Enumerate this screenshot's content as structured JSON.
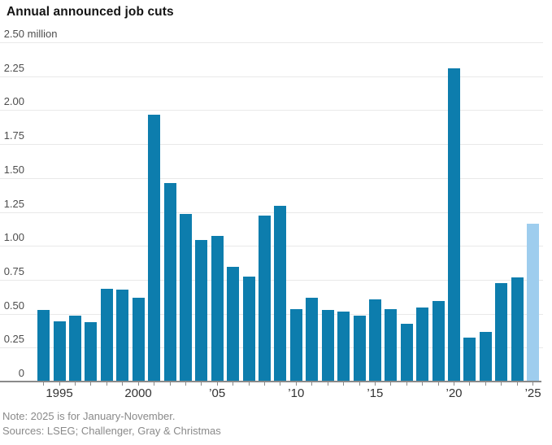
{
  "header": {
    "title": "Annual announced job cuts"
  },
  "footer": {
    "note": "Note: 2025 is for January-November.",
    "sources": "Sources: LSEG; Challenger, Gray & Christmas"
  },
  "chart_data": {
    "type": "bar",
    "title": "Annual announced job cuts",
    "unit": "million announced job cuts",
    "ylim": [
      0,
      2.5
    ],
    "grid": "horizontal",
    "legend": "none",
    "categories": [
      1994,
      1995,
      1996,
      1997,
      1998,
      1999,
      2000,
      2001,
      2002,
      2003,
      2004,
      2005,
      2006,
      2007,
      2008,
      2009,
      2010,
      2011,
      2012,
      2013,
      2014,
      2015,
      2016,
      2017,
      2018,
      2019,
      2020,
      2021,
      2022,
      2023,
      2024,
      2025
    ],
    "values": [
      0.52,
      0.44,
      0.48,
      0.43,
      0.68,
      0.67,
      0.61,
      1.96,
      1.46,
      1.23,
      1.04,
      1.07,
      0.84,
      0.77,
      1.22,
      1.29,
      0.53,
      0.61,
      0.52,
      0.51,
      0.48,
      0.6,
      0.53,
      0.42,
      0.54,
      0.59,
      2.3,
      0.32,
      0.36,
      0.72,
      0.76,
      1.16
    ],
    "highlight_category": 2025,
    "yticks": [
      {
        "value": 2.5,
        "num": "2.50",
        "suffix": " million"
      },
      {
        "value": 2.25,
        "num": "2.25",
        "suffix": ""
      },
      {
        "value": 2.0,
        "num": "2.00",
        "suffix": ""
      },
      {
        "value": 1.75,
        "num": "1.75",
        "suffix": ""
      },
      {
        "value": 1.5,
        "num": "1.50",
        "suffix": ""
      },
      {
        "value": 1.25,
        "num": "1.25",
        "suffix": ""
      },
      {
        "value": 1.0,
        "num": "1.00",
        "suffix": ""
      },
      {
        "value": 0.75,
        "num": "0.75",
        "suffix": ""
      },
      {
        "value": 0.5,
        "num": "0.50",
        "suffix": ""
      },
      {
        "value": 0.25,
        "num": "0.25",
        "suffix": ""
      },
      {
        "value": 0,
        "num": "0",
        "suffix": ""
      }
    ],
    "xticks": [
      {
        "year": 1995,
        "label": "1995"
      },
      {
        "year": 2000,
        "label": "2000"
      },
      {
        "year": 2005,
        "label": "’05"
      },
      {
        "year": 2010,
        "label": "’10"
      },
      {
        "year": 2015,
        "label": "’15"
      },
      {
        "year": 2020,
        "label": "’20"
      },
      {
        "year": 2025,
        "label": "’25"
      }
    ],
    "colors": {
      "bar": "#0d7dad",
      "bar_highlight": "#9ecdee",
      "grid": "#e9e9e9",
      "axis": "#8a8a8a",
      "title_text": "#141414",
      "tick_text": "#4d4d4d",
      "footer_text": "#8a8a8a"
    }
  }
}
